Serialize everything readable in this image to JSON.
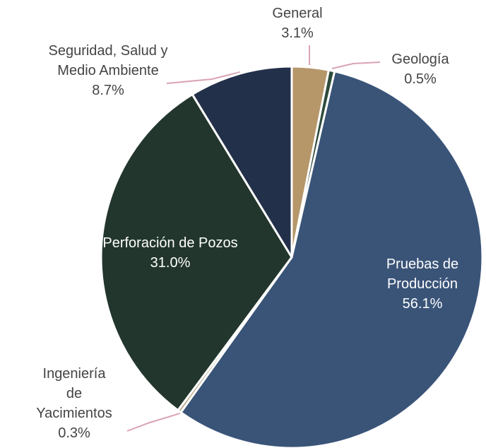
{
  "chart_data": {
    "type": "pie",
    "categories": [
      "General",
      "Geología",
      "Pruebas de Producción",
      "Ingeniería de Yacimientos",
      "Perforación de Pozos",
      "Seguridad, Salud y Medio Ambiente"
    ],
    "values": [
      3.1,
      0.5,
      56.1,
      0.3,
      31.0,
      8.7
    ],
    "value_labels": [
      "3.1%",
      "0.5%",
      "56.1%",
      "0.3%",
      "31.0%",
      "8.7%"
    ],
    "colors": [
      "#b5976a",
      "#2e4b3c",
      "#3a5478",
      "#b9ab8c",
      "#22362d",
      "#23304a"
    ]
  }
}
